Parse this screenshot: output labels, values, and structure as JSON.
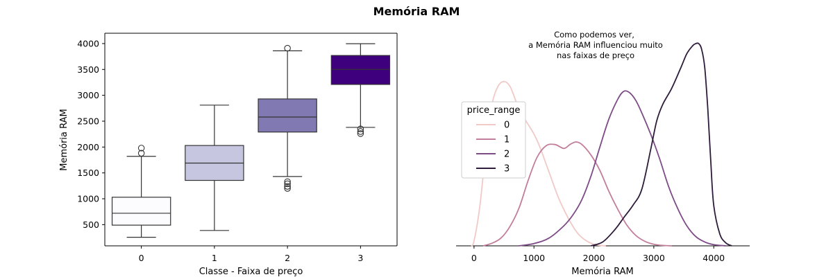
{
  "figure": {
    "suptitle": "Memória RAM"
  },
  "chart_data": [
    {
      "type": "box",
      "title": "",
      "xlabel": "Classe - Faixa de preço",
      "ylabel": "Memória RAM",
      "categories": [
        "0",
        "1",
        "2",
        "3"
      ],
      "ylim": [
        90,
        4200
      ],
      "yticks": [
        500,
        1000,
        1500,
        2000,
        2500,
        3000,
        3500,
        4000
      ],
      "colors": [
        "#fcfbfd",
        "#c6c6e0",
        "#8079b2",
        "#3f007d"
      ],
      "boxes": [
        {
          "category": "0",
          "whislo": 256,
          "q1": 490,
          "med": 720,
          "q3": 1030,
          "whishi": 1820,
          "fliers": [
            1880,
            1980
          ]
        },
        {
          "category": "1",
          "whislo": 387,
          "q1": 1355,
          "med": 1690,
          "q3": 2030,
          "whishi": 2810,
          "fliers": []
        },
        {
          "category": "2",
          "whislo": 1430,
          "q1": 2290,
          "med": 2580,
          "q3": 2930,
          "whishi": 3860,
          "fliers": [
            1200,
            1240,
            1290,
            1330,
            3910
          ]
        },
        {
          "category": "3",
          "whislo": 2380,
          "q1": 3210,
          "med": 3500,
          "q3": 3770,
          "whishi": 3998,
          "fliers": [
            2260,
            2300,
            2350
          ]
        }
      ],
      "grid": false
    },
    {
      "type": "line",
      "subtype": "kde",
      "title": "",
      "annotation": [
        "Como podemos ver,",
        "a Memória RAM influenciou muito",
        "nas faixas de preço"
      ],
      "xlabel": "Memória RAM",
      "ylabel": "",
      "xlim": [
        -300,
        4600
      ],
      "xticks": [
        0,
        1000,
        2000,
        3000,
        4000
      ],
      "legend": {
        "title": "price_range",
        "placement": "center-left"
      },
      "series": [
        {
          "name": "0",
          "color": "#f1c9c7",
          "x": [
            -50,
            0,
            100,
            200,
            300,
            400,
            500,
            600,
            700,
            800,
            900,
            1000,
            1100,
            1200,
            1300,
            1400,
            1500,
            1600,
            1700,
            1800,
            1900,
            2000,
            2100,
            2200
          ],
          "y": [
            0.0,
            0.03,
            0.25,
            0.6,
            0.86,
            0.97,
            1.0,
            0.97,
            0.88,
            0.8,
            0.74,
            0.68,
            0.6,
            0.5,
            0.4,
            0.3,
            0.22,
            0.15,
            0.09,
            0.05,
            0.025,
            0.01,
            0.003,
            0.0
          ]
        },
        {
          "name": "1",
          "color": "#c27d9b",
          "x": [
            150,
            300,
            450,
            600,
            750,
            900,
            1050,
            1200,
            1350,
            1500,
            1600,
            1700,
            1800,
            1950,
            2100,
            2250,
            2400,
            2550,
            2700,
            2850,
            3000,
            3150,
            3300
          ],
          "y": [
            0.0,
            0.02,
            0.06,
            0.15,
            0.29,
            0.5,
            0.68,
            0.77,
            0.78,
            0.75,
            0.78,
            0.8,
            0.78,
            0.7,
            0.58,
            0.42,
            0.28,
            0.16,
            0.08,
            0.035,
            0.012,
            0.003,
            0.0
          ]
        },
        {
          "name": "2",
          "color": "#7d4b86",
          "x": [
            750,
            1000,
            1250,
            1500,
            1650,
            1800,
            1950,
            2100,
            2250,
            2400,
            2500,
            2600,
            2700,
            2800,
            2950,
            3100,
            3250,
            3400,
            3550,
            3700,
            3850,
            4000,
            4200
          ],
          "y": [
            0.0,
            0.015,
            0.05,
            0.13,
            0.2,
            0.3,
            0.45,
            0.64,
            0.82,
            0.95,
            1.0,
            0.99,
            0.94,
            0.86,
            0.72,
            0.56,
            0.38,
            0.24,
            0.13,
            0.06,
            0.025,
            0.008,
            0.0
          ]
        },
        {
          "name": "3",
          "color": "#2e1b3b",
          "x": [
            1950,
            2150,
            2350,
            2500,
            2650,
            2800,
            2950,
            3050,
            3150,
            3300,
            3450,
            3550,
            3650,
            3700,
            3750,
            3800,
            3850,
            3900,
            3950,
            4000,
            4100,
            4200,
            4300
          ],
          "y": [
            0.0,
            0.02,
            0.08,
            0.14,
            0.2,
            0.28,
            0.48,
            0.62,
            0.7,
            0.78,
            0.88,
            0.95,
            0.99,
            1.0,
            1.0,
            0.97,
            0.88,
            0.68,
            0.42,
            0.2,
            0.06,
            0.015,
            0.0
          ]
        }
      ],
      "peak_density_ratio": [
        1.0,
        0.79,
        0.94,
        1.23
      ],
      "grid": false
    }
  ]
}
